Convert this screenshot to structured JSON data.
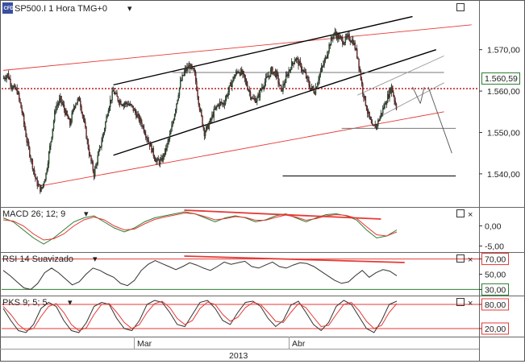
{
  "header": {
    "logo_text": "CFD",
    "symbol_label": "SP500.I 1 Hora TMG+0",
    "dropdown_glyph": "▾"
  },
  "panel_buttons": {
    "maximize_glyph": "□",
    "close_glyph": "×"
  },
  "colors": {
    "price_up": "#2e7d32",
    "price_down": "#c62828",
    "channel_red": "#e53935",
    "trend_black": "#000000",
    "macd_line": "#2e7d32",
    "signal_line": "#e53935",
    "rsi_line": "#333333",
    "pks_k": "#333333",
    "pks_d": "#e53935",
    "level_green": "#2e7d32",
    "level_red": "#e53935",
    "price_box_border": "#2e7d32"
  },
  "chart_data": [
    {
      "type": "candlestick",
      "name": "SP500.I 1 Hora TMG+0",
      "ylim": [
        1532,
        1582
      ],
      "y_ticks": [
        "1.570,00",
        "1.560,00",
        "1.550,00",
        "1.540,00"
      ],
      "y_tick_values": [
        1570,
        1560,
        1550,
        1540
      ],
      "current_price": 1560.59,
      "current_price_label": "1.560,59",
      "x_labels": [
        "Mar",
        "Abr"
      ],
      "year_label": "2013",
      "path_values": [
        1563,
        1564,
        1561,
        1560,
        1555,
        1548,
        1543,
        1538,
        1536,
        1540,
        1548,
        1556,
        1558,
        1555,
        1552,
        1557,
        1558,
        1552,
        1545,
        1540,
        1545,
        1550,
        1556,
        1560,
        1558,
        1557,
        1557,
        1556,
        1554,
        1552,
        1549,
        1546,
        1543,
        1543,
        1546,
        1550,
        1556,
        1562,
        1565,
        1566,
        1564,
        1556,
        1550,
        1552,
        1555,
        1557,
        1557,
        1560,
        1563,
        1565,
        1564,
        1561,
        1558,
        1558,
        1561,
        1563,
        1565,
        1564,
        1560,
        1563,
        1566,
        1568,
        1566,
        1564,
        1561,
        1560,
        1564,
        1567,
        1571,
        1574,
        1573,
        1572,
        1573,
        1572,
        1568,
        1560,
        1555,
        1551,
        1552,
        1555,
        1558,
        1561,
        1556
      ]
    },
    {
      "type": "line",
      "title": "MACD 26; 12; 9",
      "ylim": [
        -6.5,
        4.5
      ],
      "y_ticks": [
        "0,00",
        "-5,00"
      ],
      "y_tick_values": [
        0,
        -5
      ],
      "series": [
        {
          "values": [
            2,
            1,
            -1,
            -3,
            -4.5,
            -3,
            -1,
            1,
            2,
            2.5,
            1,
            -0.5,
            -1.5,
            -0.5,
            1,
            2,
            2.5,
            3,
            3.5,
            3,
            2,
            1,
            2,
            2.5,
            2,
            1,
            1.5,
            2.5,
            3,
            2,
            1,
            2,
            2.8,
            3,
            2.5,
            1.5,
            -1,
            -3,
            -2.5,
            -1
          ]
        },
        {
          "values": [
            1.5,
            1.2,
            0,
            -2,
            -3.5,
            -3.2,
            -2,
            0,
            1.5,
            2.2,
            1.5,
            0,
            -1,
            -0.8,
            0.5,
            1.6,
            2.2,
            2.7,
            3.2,
            3,
            2.3,
            1.5,
            1.8,
            2.3,
            2.1,
            1.4,
            1.4,
            2.1,
            2.7,
            2.2,
            1.4,
            1.8,
            2.5,
            2.8,
            2.6,
            1.9,
            -0.2,
            -2.2,
            -2.5,
            -1.5
          ]
        }
      ]
    },
    {
      "type": "line",
      "title": "RSI 14 Suavizado",
      "ylim": [
        22,
        78
      ],
      "y_ticks": [
        "70,00",
        "50,00",
        "30,00"
      ],
      "y_tick_values": [
        70,
        50,
        30
      ],
      "series": [
        {
          "values": [
            55,
            48,
            40,
            32,
            30,
            38,
            52,
            58,
            52,
            44,
            36,
            40,
            50,
            58,
            55,
            50,
            46,
            38,
            35,
            42,
            55,
            63,
            68,
            64,
            60,
            56,
            60,
            65,
            62,
            58,
            55,
            60,
            66,
            63,
            65,
            67,
            60,
            58,
            62,
            66,
            60,
            58,
            62,
            65,
            64,
            60,
            54,
            48,
            42,
            38,
            40,
            48,
            55,
            46,
            52,
            56,
            54,
            48
          ]
        }
      ]
    },
    {
      "type": "line",
      "title": "PKS 9; 5; 5",
      "ylim": [
        0,
        100
      ],
      "y_ticks": [
        "80,00",
        "20,00"
      ],
      "y_tick_values": [
        80,
        20
      ],
      "series": [
        {
          "values": [
            70,
            40,
            15,
            10,
            30,
            70,
            85,
            75,
            40,
            15,
            10,
            35,
            75,
            85,
            80,
            45,
            20,
            15,
            40,
            80,
            90,
            85,
            60,
            30,
            25,
            55,
            85,
            90,
            70,
            40,
            30,
            60,
            85,
            88,
            75,
            45,
            25,
            40,
            78,
            88,
            60,
            30,
            15,
            35,
            75,
            90,
            80,
            50,
            20,
            10,
            40,
            80,
            88
          ]
        },
        {
          "values": [
            75,
            55,
            30,
            15,
            20,
            50,
            75,
            82,
            60,
            30,
            15,
            22,
            55,
            80,
            82,
            60,
            35,
            20,
            30,
            60,
            82,
            88,
            72,
            45,
            30,
            40,
            70,
            86,
            80,
            55,
            38,
            48,
            72,
            85,
            80,
            60,
            38,
            35,
            60,
            82,
            72,
            48,
            25,
            28,
            55,
            80,
            85,
            65,
            38,
            20,
            28,
            60,
            82
          ]
        }
      ]
    }
  ]
}
